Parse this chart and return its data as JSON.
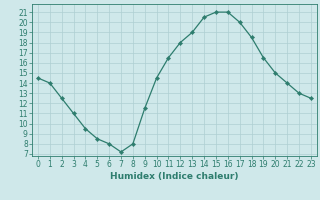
{
  "x": [
    0,
    1,
    2,
    3,
    4,
    5,
    6,
    7,
    8,
    9,
    10,
    11,
    12,
    13,
    14,
    15,
    16,
    17,
    18,
    19,
    20,
    21,
    22,
    23
  ],
  "y": [
    14.5,
    14.0,
    12.5,
    11.0,
    9.5,
    8.5,
    8.0,
    7.2,
    8.0,
    11.5,
    14.5,
    16.5,
    18.0,
    19.0,
    20.5,
    21.0,
    21.0,
    20.0,
    18.5,
    16.5,
    15.0,
    14.0,
    13.0,
    12.5
  ],
  "xlim": [
    -0.5,
    23.5
  ],
  "ylim": [
    6.8,
    21.8
  ],
  "yticks": [
    7,
    8,
    9,
    10,
    11,
    12,
    13,
    14,
    15,
    16,
    17,
    18,
    19,
    20,
    21
  ],
  "xticks": [
    0,
    1,
    2,
    3,
    4,
    5,
    6,
    7,
    8,
    9,
    10,
    11,
    12,
    13,
    14,
    15,
    16,
    17,
    18,
    19,
    20,
    21,
    22,
    23
  ],
  "xlabel": "Humidex (Indice chaleur)",
  "line_color": "#2e7d6e",
  "marker": "D",
  "marker_size": 2.2,
  "bg_color": "#cfe8ea",
  "grid_color": "#aecfd2",
  "tick_color": "#2e7d6e",
  "tick_fontsize": 5.5,
  "xlabel_fontsize": 6.5
}
